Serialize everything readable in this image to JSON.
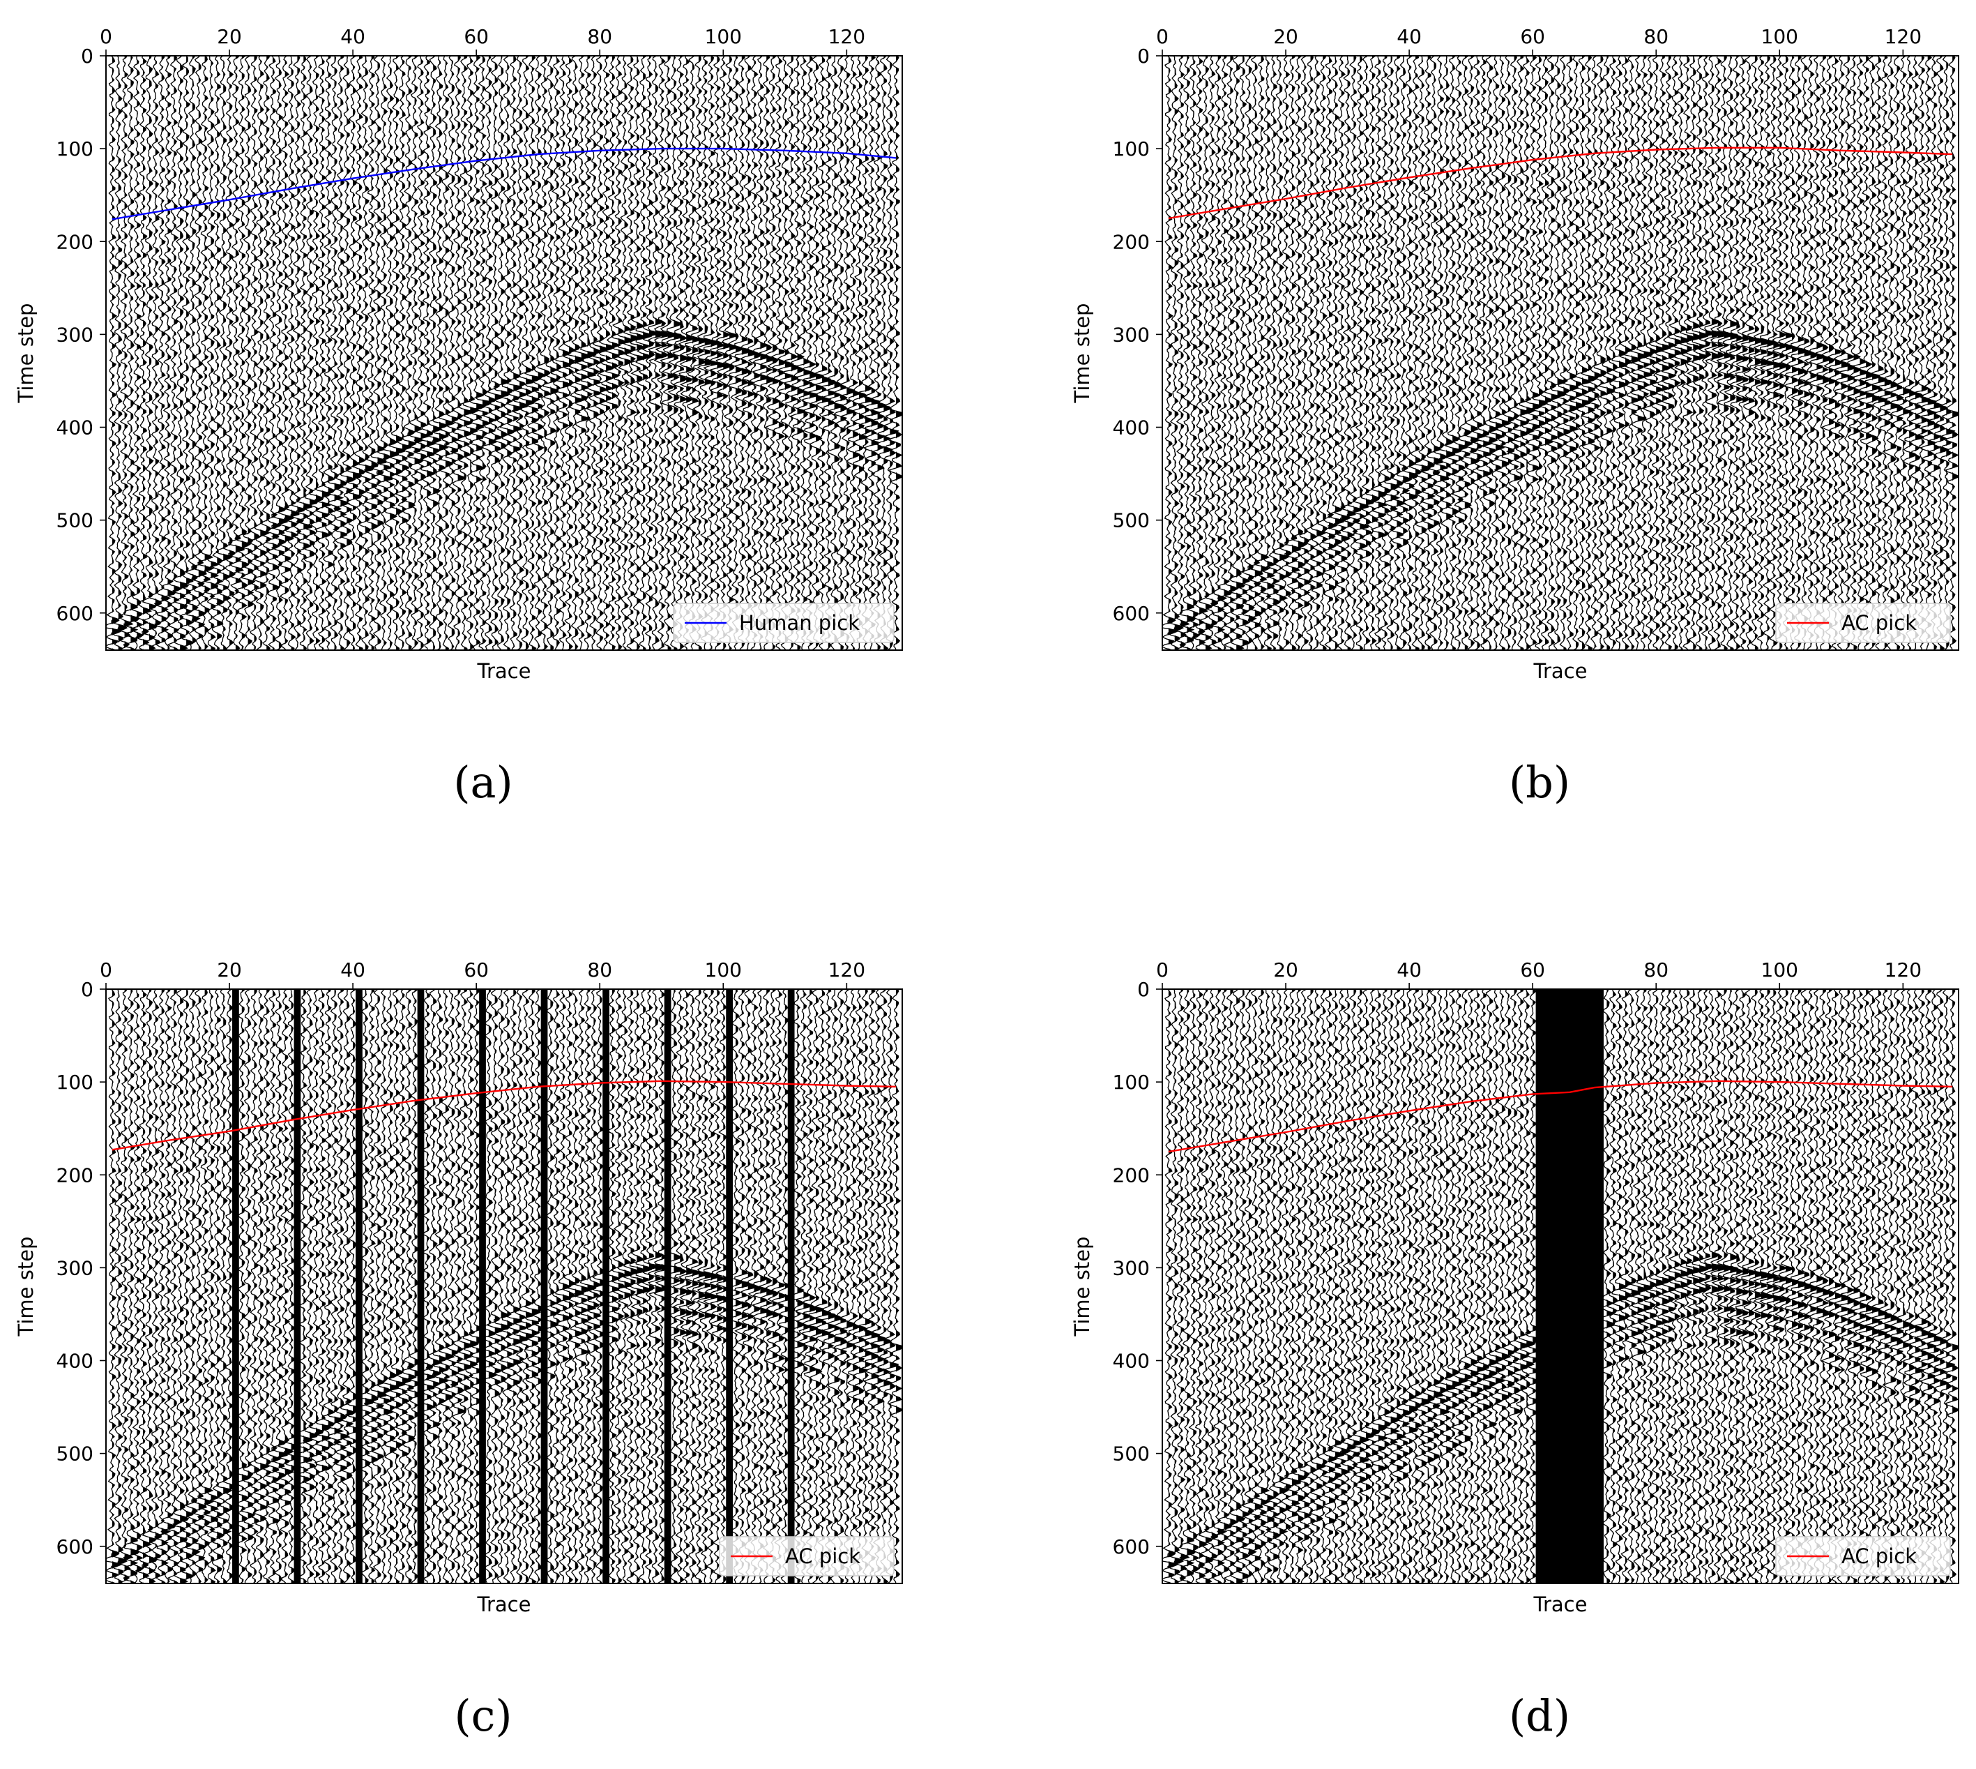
{
  "figure": {
    "panels": [
      {
        "caption": "(a)",
        "chart_index": 0
      },
      {
        "caption": "(b)",
        "chart_index": 1
      },
      {
        "caption": "(c)",
        "chart_index": 2
      },
      {
        "caption": "(d)",
        "chart_index": 3
      }
    ]
  },
  "chart_data": [
    {
      "type": "seismic-wiggle",
      "xlabel": "Trace",
      "ylabel": "Time step",
      "xlim": [
        0,
        129
      ],
      "ylim": [
        640,
        0
      ],
      "xticks": [
        0,
        20,
        40,
        60,
        80,
        100,
        120
      ],
      "yticks": [
        0,
        100,
        200,
        300,
        400,
        500,
        600
      ],
      "legend": {
        "label": "Human pick",
        "color": "#0000ff",
        "loc": "lower-right"
      },
      "variant": "original",
      "pick": {
        "x": [
          1,
          10,
          20,
          30,
          40,
          50,
          60,
          70,
          80,
          90,
          100,
          110,
          120,
          128
        ],
        "y": [
          176,
          166,
          155,
          143,
          132,
          122,
          113,
          106,
          102,
          100,
          100,
          102,
          105,
          110
        ]
      },
      "event": {
        "apex_trace": 88,
        "apex_time": 300,
        "left_edge_time": 625,
        "right_edge_time": 390
      }
    },
    {
      "type": "seismic-wiggle",
      "xlabel": "Trace",
      "ylabel": "Time step",
      "xlim": [
        0,
        129
      ],
      "ylim": [
        640,
        0
      ],
      "xticks": [
        0,
        20,
        40,
        60,
        80,
        100,
        120
      ],
      "yticks": [
        0,
        100,
        200,
        300,
        400,
        500,
        600
      ],
      "legend": {
        "label": "AC pick",
        "color": "#ff0000",
        "loc": "lower-right"
      },
      "variant": "original",
      "pick": {
        "x": [
          1,
          10,
          20,
          30,
          40,
          50,
          60,
          70,
          80,
          90,
          100,
          110,
          120,
          128
        ],
        "y": [
          175,
          165,
          154,
          142,
          131,
          121,
          112,
          105,
          101,
          99,
          99,
          102,
          104,
          106
        ]
      },
      "event": {
        "apex_trace": 88,
        "apex_time": 300,
        "left_edge_time": 625,
        "right_edge_time": 390
      }
    },
    {
      "type": "seismic-wiggle",
      "xlabel": "Trace",
      "ylabel": "Time step",
      "xlim": [
        0,
        129
      ],
      "ylim": [
        640,
        0
      ],
      "xticks": [
        0,
        20,
        40,
        60,
        80,
        100,
        120
      ],
      "yticks": [
        0,
        100,
        200,
        300,
        400,
        500,
        600
      ],
      "legend": {
        "label": "AC pick",
        "color": "#ff0000",
        "loc": "lower-right"
      },
      "variant": "bad-traces",
      "bad_traces": [
        21,
        31,
        41,
        51,
        61,
        71,
        81,
        91,
        101,
        111
      ],
      "pick": {
        "x": [
          1,
          10,
          20,
          30,
          40,
          50,
          60,
          70,
          80,
          90,
          100,
          110,
          120,
          128
        ],
        "y": [
          173,
          163,
          153,
          141,
          130,
          120,
          112,
          105,
          101,
          99,
          100,
          102,
          104,
          105
        ]
      },
      "event": {
        "apex_trace": 88,
        "apex_time": 300,
        "left_edge_time": 625,
        "right_edge_time": 390
      }
    },
    {
      "type": "seismic-wiggle",
      "xlabel": "Trace",
      "ylabel": "Time step",
      "xlim": [
        0,
        129
      ],
      "ylim": [
        640,
        0
      ],
      "xticks": [
        0,
        20,
        40,
        60,
        80,
        100,
        120
      ],
      "yticks": [
        0,
        100,
        200,
        300,
        400,
        500,
        600
      ],
      "legend": {
        "label": "AC pick",
        "color": "#ff0000",
        "loc": "lower-right"
      },
      "variant": "missing-block",
      "masked_traces": [
        61,
        71
      ],
      "pick": {
        "x": [
          1,
          10,
          20,
          30,
          40,
          50,
          60,
          66,
          70,
          80,
          90,
          100,
          110,
          120,
          128
        ],
        "y": [
          175,
          165,
          154,
          142,
          131,
          121,
          113,
          111,
          106,
          101,
          99,
          100,
          102,
          104,
          105
        ]
      },
      "event": {
        "apex_trace": 88,
        "apex_time": 300,
        "left_edge_time": 625,
        "right_edge_time": 390
      }
    }
  ]
}
